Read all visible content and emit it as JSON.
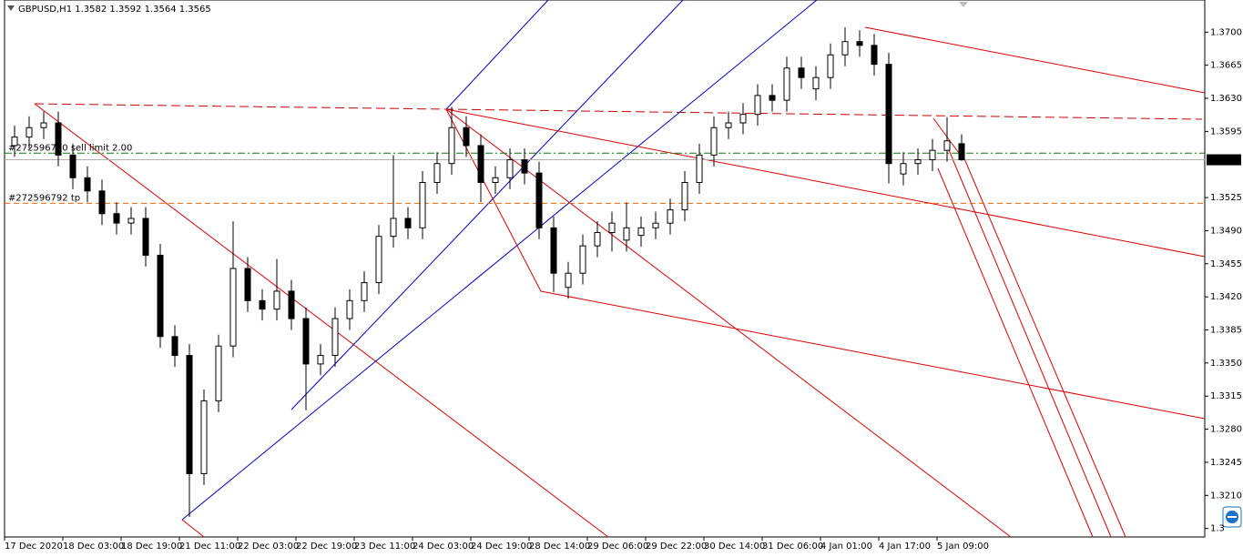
{
  "chart_data": {
    "type": "candlestick",
    "title": "GBPUSD,H1  1.3582 1.3592 1.3564 1.3565",
    "categories": [
      "17 Dec 2020",
      null,
      null,
      null,
      "18 Dec 03:00",
      null,
      null,
      null,
      "18 Dec 19:00",
      null,
      null,
      null,
      "21 Dec 11:00",
      null,
      null,
      null,
      "22 Dec 03:00",
      null,
      null,
      null,
      "22 Dec 19:00",
      null,
      null,
      null,
      "23 Dec 11:00",
      null,
      null,
      null,
      "24 Dec 03:00",
      null,
      null,
      null,
      "24 Dec 19:00",
      null,
      null,
      null,
      "28 Dec 14:00",
      null,
      null,
      null,
      "29 Dec 06:00",
      null,
      null,
      null,
      "29 Dec 22:00",
      null,
      null,
      null,
      "30 Dec 14:00",
      null,
      null,
      null,
      "31 Dec 06:00",
      null,
      null,
      null,
      "4 Jan 01:00",
      null,
      null,
      null,
      "4 Jan 17:00",
      null,
      null,
      null,
      "5 Jan 09:00",
      null
    ],
    "open": [
      1.358,
      1.3589,
      1.3599,
      1.3604,
      1.357,
      1.3546,
      1.3532,
      1.3508,
      1.3498,
      1.3503,
      1.3464,
      1.3378,
      1.3358,
      1.3233,
      1.331,
      1.3368,
      1.345,
      1.3416,
      1.3407,
      1.3426,
      1.3397,
      1.3349,
      1.3358,
      1.3397,
      1.3416,
      1.3435,
      1.3484,
      1.3503,
      1.3493,
      1.3541,
      1.3561,
      1.3599,
      1.358,
      1.3541,
      1.3546,
      1.3565,
      1.3551,
      1.3493,
      1.343,
      1.3445,
      1.3474,
      1.3488,
      1.348,
      1.3485,
      1.3493,
      1.3498,
      1.3512,
      1.3541,
      1.357,
      1.3599,
      1.3604,
      1.3613,
      1.3633,
      1.3628,
      1.3662,
      1.364,
      1.3652,
      1.3676,
      1.369,
      1.3686,
      1.3666,
      1.355,
      1.3561,
      1.3565,
      1.3575,
      1.3582
    ],
    "high": [
      1.3601,
      1.3611,
      1.3616,
      1.3616,
      1.3582,
      1.3558,
      1.3544,
      1.352,
      1.3515,
      1.3515,
      1.3476,
      1.339,
      1.337,
      1.3322,
      1.338,
      1.35,
      1.3462,
      1.3428,
      1.346,
      1.3438,
      1.3409,
      1.337,
      1.3409,
      1.3428,
      1.3447,
      1.3496,
      1.357,
      1.3515,
      1.3553,
      1.3573,
      1.3621,
      1.3611,
      1.3592,
      1.3558,
      1.3577,
      1.3577,
      1.3563,
      1.3505,
      1.3457,
      1.3486,
      1.35,
      1.351,
      1.352,
      1.3505,
      1.351,
      1.3524,
      1.3553,
      1.3582,
      1.3611,
      1.3616,
      1.3625,
      1.3645,
      1.3645,
      1.3674,
      1.3674,
      1.3664,
      1.3688,
      1.3705,
      1.3702,
      1.3698,
      1.3678,
      1.3573,
      1.3577,
      1.3587,
      1.361,
      1.3592
    ],
    "low": [
      1.3568,
      1.3577,
      1.3587,
      1.3558,
      1.3534,
      1.352,
      1.3496,
      1.3486,
      1.3486,
      1.3452,
      1.3366,
      1.3346,
      1.3187,
      1.3221,
      1.3298,
      1.3356,
      1.3404,
      1.3395,
      1.3395,
      1.3385,
      1.33,
      1.3337,
      1.3346,
      1.3385,
      1.3404,
      1.3423,
      1.3472,
      1.3481,
      1.3481,
      1.3529,
      1.3549,
      1.3568,
      1.352,
      1.3529,
      1.3534,
      1.3539,
      1.3481,
      1.3425,
      1.3418,
      1.3433,
      1.3462,
      1.3468,
      1.3468,
      1.3473,
      1.3481,
      1.3486,
      1.35,
      1.3529,
      1.3558,
      1.3587,
      1.3592,
      1.3601,
      1.3616,
      1.3616,
      1.364,
      1.3628,
      1.364,
      1.3664,
      1.3674,
      1.3654,
      1.354,
      1.3538,
      1.3549,
      1.3553,
      1.3563,
      1.3564
    ],
    "close": [
      1.3589,
      1.3599,
      1.3604,
      1.357,
      1.3546,
      1.3532,
      1.3508,
      1.3498,
      1.3503,
      1.3464,
      1.3378,
      1.3358,
      1.3233,
      1.331,
      1.3368,
      1.345,
      1.3416,
      1.3407,
      1.3426,
      1.3397,
      1.3349,
      1.3358,
      1.3397,
      1.3416,
      1.3435,
      1.3484,
      1.3503,
      1.3493,
      1.3541,
      1.3561,
      1.3599,
      1.358,
      1.3541,
      1.3546,
      1.3565,
      1.3551,
      1.3493,
      1.3445,
      1.3445,
      1.3474,
      1.3488,
      1.3498,
      1.3493,
      1.3493,
      1.3498,
      1.3512,
      1.3541,
      1.357,
      1.3599,
      1.3604,
      1.3613,
      1.3633,
      1.3628,
      1.3662,
      1.3652,
      1.3652,
      1.3676,
      1.369,
      1.3686,
      1.3666,
      1.3561,
      1.3561,
      1.3565,
      1.3575,
      1.3585,
      1.3565
    ],
    "ylim": [
      1.3166,
      1.3734
    ],
    "yticks": [
      {
        "value": 1.37,
        "label": "1.3700"
      },
      {
        "value": 1.3665,
        "label": "1.3665"
      },
      {
        "value": 1.363,
        "label": "1.3630"
      },
      {
        "value": 1.3595,
        "label": "1.3595"
      },
      {
        "value": 1.3525,
        "label": "1.3525"
      },
      {
        "value": 1.349,
        "label": "1.3490"
      },
      {
        "value": 1.3455,
        "label": "1.3455"
      },
      {
        "value": 1.342,
        "label": "1.3420"
      },
      {
        "value": 1.3385,
        "label": "1.3385"
      },
      {
        "value": 1.335,
        "label": "1.3350"
      },
      {
        "value": 1.3315,
        "label": "1.3315"
      },
      {
        "value": 1.328,
        "label": "1.3280"
      },
      {
        "value": 1.3245,
        "label": "1.3245"
      },
      {
        "value": 1.321,
        "label": "1.3210"
      },
      {
        "value": 1.3175,
        "label": "1.3"
      }
    ],
    "current_price": {
      "value": 1.3565,
      "label": "1.3565"
    },
    "order_lines": [
      {
        "label": "#272596760 sell limit 2.00",
        "value": 1.3572,
        "color": "#008000"
      },
      {
        "label": "#272596792 tp",
        "value": 1.3519,
        "color": "#ff6600"
      }
    ],
    "bull_color": "#ffffff",
    "bear_color": "#000000"
  }
}
